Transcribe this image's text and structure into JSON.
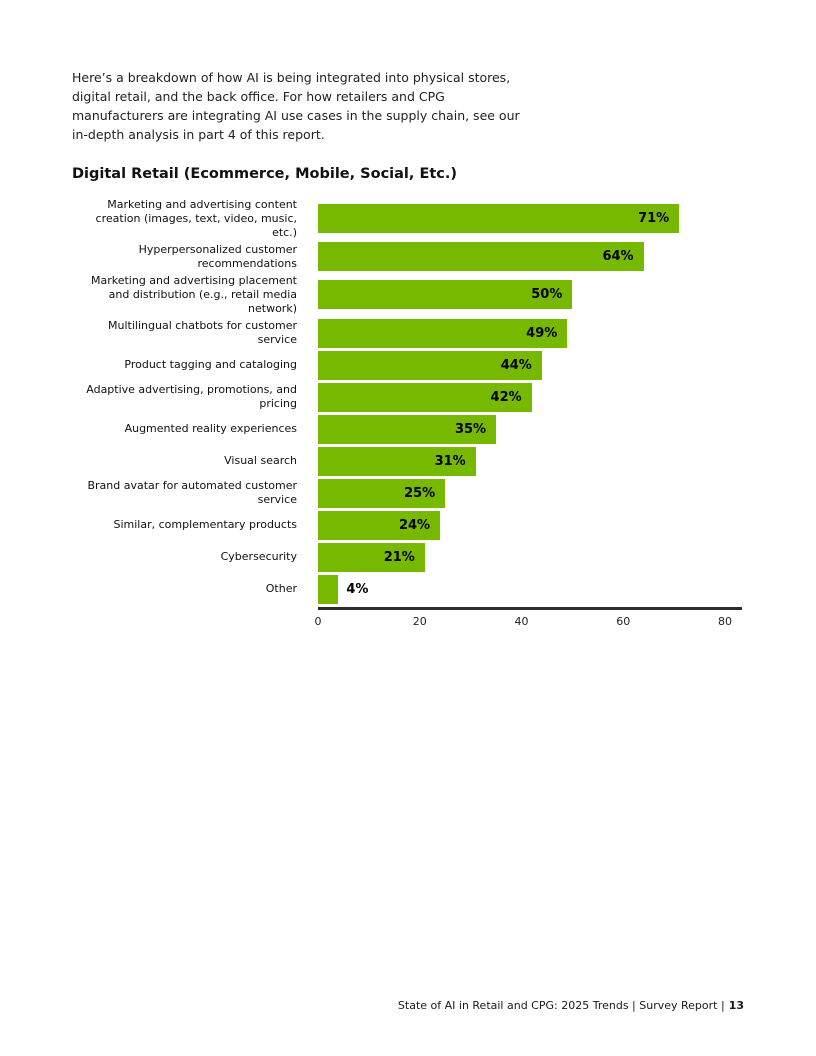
{
  "page": {
    "intro": "Here’s a breakdown of how AI is being integrated into physical stores, digital retail, and the back office. For how retailers and CPG manufacturers are integrating AI use cases in the supply chain, see our in-depth analysis in part 4 of this report.",
    "heading": "Digital Retail (Ecommerce, Mobile, Social, Etc.)",
    "footer": {
      "text": "State of AI in Retail and CPG: 2025 Trends  |  Survey Report  |",
      "page_number": "13"
    }
  },
  "colors": {
    "bar": "#76b900",
    "axis": "#2d2d2d",
    "text": "#1a1a1a"
  },
  "chart_data": {
    "type": "bar",
    "orientation": "horizontal",
    "title": "Digital Retail (Ecommerce, Mobile, Social, Etc.)",
    "categories": [
      "Marketing and advertising content creation (images, text, video, music, etc.)",
      "Hyperpersonalized customer recommendations",
      "Marketing and advertising placement and distribution (e.g., retail media network)",
      "Multilingual chatbots for customer service",
      "Product tagging and cataloging",
      "Adaptive advertising, promotions, and pricing",
      "Augmented reality experiences",
      "Visual search",
      "Brand avatar for automated customer service",
      "Similar, complementary products",
      "Cybersecurity",
      "Other"
    ],
    "values": [
      71,
      64,
      50,
      49,
      44,
      42,
      35,
      31,
      25,
      24,
      21,
      4
    ],
    "value_labels": [
      "71%",
      "64%",
      "50%",
      "49%",
      "44%",
      "42%",
      "35%",
      "31%",
      "25%",
      "24%",
      "21%",
      "4%"
    ],
    "xlabel": "",
    "ylabel": "",
    "xlim": [
      0,
      80
    ],
    "x_ticks": [
      0,
      20,
      40,
      60,
      80
    ],
    "bar_color": "#76b900",
    "grid": false,
    "legend": false
  }
}
